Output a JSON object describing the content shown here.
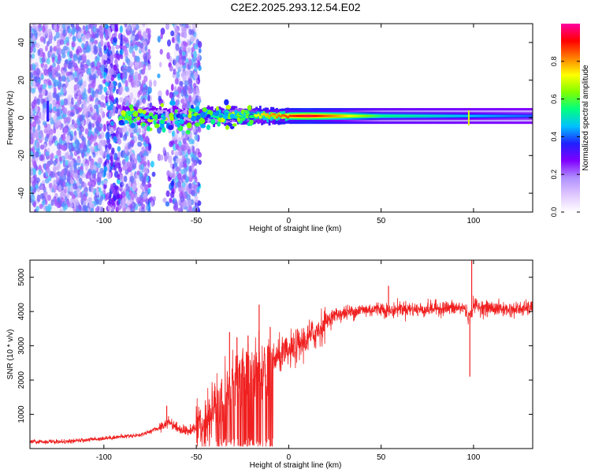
{
  "title": "C2E2.2025.293.12.54.E02",
  "chart_data": [
    {
      "type": "heatmap",
      "id": "spectrogram",
      "xlabel": "Height of straight line (km)",
      "ylabel": "Frequency (Hz)",
      "xlim": [
        -140,
        132
      ],
      "ylim": [
        -50,
        50
      ],
      "xticks": [
        -100,
        -50,
        0,
        50,
        100
      ],
      "yticks": [
        -40,
        -20,
        0,
        20,
        40
      ],
      "colorbar": {
        "label": "Normalized spectral amplitude",
        "range": [
          0,
          1
        ],
        "ticks": [
          0.0,
          0.2,
          0.4,
          0.6,
          0.8
        ],
        "colormap": [
          "#ffffff",
          "#e0c8ff",
          "#b090ff",
          "#8000ff",
          "#2020ff",
          "#00c0ff",
          "#00ff80",
          "#80ff00",
          "#ffff00",
          "#ff8000",
          "#ff0000",
          "#ff00a0"
        ]
      },
      "description_points": [
        {
          "x": -130,
          "f": 5,
          "a": 0.25
        },
        {
          "x": -80,
          "f": 1,
          "a": 0.45
        },
        {
          "x": -60,
          "f": 0,
          "a": 0.4
        },
        {
          "x": -30,
          "f": 1,
          "a": 0.6
        },
        {
          "x": -10,
          "f": 1,
          "a": 0.8
        },
        {
          "x": 10,
          "f": 1,
          "a": 0.95
        },
        {
          "x": 50,
          "f": 0.5,
          "a": 0.55
        },
        {
          "x": 100,
          "f": 0.5,
          "a": 0.45
        },
        {
          "x": 130,
          "f": 1,
          "a": 0.4
        }
      ]
    },
    {
      "type": "line",
      "id": "snr",
      "xlabel": "Height of straight line (km)",
      "ylabel": "SNR (10 * v/v)",
      "xlim": [
        -140,
        132
      ],
      "ylim": [
        0,
        5500
      ],
      "xticks": [
        -100,
        -50,
        0,
        50,
        100
      ],
      "yticks": [
        1000,
        2000,
        3000,
        4000,
        5000
      ],
      "color": "#f02020",
      "series": [
        {
          "name": "SNR",
          "x": [
            -140,
            -120,
            -100,
            -90,
            -80,
            -70,
            -65,
            -60,
            -55,
            -50,
            -45,
            -40,
            -35,
            -30,
            -25,
            -20,
            -15,
            -10,
            -5,
            0,
            5,
            10,
            15,
            20,
            25,
            30,
            35,
            40,
            45,
            50,
            55,
            60,
            70,
            80,
            90,
            95,
            98,
            100,
            105,
            110,
            120,
            132
          ],
          "y": [
            200,
            200,
            300,
            350,
            400,
            600,
            800,
            600,
            500,
            600,
            800,
            1200,
            1500,
            2000,
            2200,
            2500,
            2300,
            2500,
            2700,
            2800,
            3000,
            3200,
            3400,
            3700,
            3900,
            3950,
            4000,
            4050,
            4050,
            4100,
            4000,
            4100,
            4050,
            4100,
            4100,
            4100,
            3800,
            4200,
            4100,
            4100,
            4050,
            4100
          ]
        }
      ],
      "spikes": [
        {
          "x": -66,
          "y": 1250
        },
        {
          "x": -32,
          "y": 3400
        },
        {
          "x": -28,
          "y": 3250
        },
        {
          "x": -22,
          "y": 3300
        },
        {
          "x": -16,
          "y": 4200
        },
        {
          "x": -10,
          "y": 3550
        },
        {
          "x": 54,
          "y": 4750
        },
        {
          "x": 99,
          "y": 5500
        },
        {
          "x": 98,
          "y": 2100
        }
      ]
    }
  ]
}
